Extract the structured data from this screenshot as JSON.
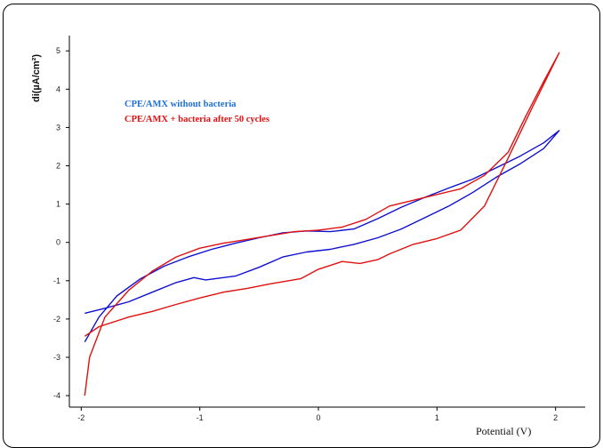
{
  "chart_data": {
    "type": "line",
    "title": "",
    "xlabel": "Potential (V)",
    "ylabel": "di(µA/cm²)",
    "xlim": [
      -2.1,
      2.25
    ],
    "ylim": [
      -4.3,
      5.4
    ],
    "xticks": [
      -2,
      -1,
      0,
      1,
      2
    ],
    "yticks": [
      -4,
      -3,
      -2,
      -1,
      0,
      1,
      2,
      3,
      4,
      5
    ],
    "grid": false,
    "legend_position": "top-left",
    "series": [
      {
        "name": "CPE/AMX without bacteria",
        "color": "#1010d0",
        "legend_color": "#1f6fd6",
        "x": [
          -1.97,
          -1.8,
          -1.6,
          -1.4,
          -1.2,
          -1.05,
          -0.95,
          -0.7,
          -0.5,
          -0.3,
          -0.1,
          0.1,
          0.3,
          0.5,
          0.7,
          0.9,
          1.1,
          1.3,
          1.5,
          1.7,
          1.9,
          2.03,
          1.9,
          1.7,
          1.5,
          1.3,
          1.1,
          0.9,
          0.7,
          0.5,
          0.3,
          0.1,
          -0.1,
          -0.3,
          -0.5,
          -0.7,
          -0.9,
          -1.1,
          -1.3,
          -1.5,
          -1.7,
          -1.85,
          -1.97
        ],
        "y": [
          -1.85,
          -1.72,
          -1.55,
          -1.3,
          -1.05,
          -0.92,
          -0.98,
          -0.88,
          -0.65,
          -0.38,
          -0.25,
          -0.18,
          -0.05,
          0.12,
          0.35,
          0.65,
          0.95,
          1.3,
          1.7,
          2.05,
          2.45,
          2.92,
          2.6,
          2.25,
          1.95,
          1.65,
          1.42,
          1.18,
          0.92,
          0.62,
          0.35,
          0.28,
          0.3,
          0.25,
          0.12,
          -0.02,
          -0.18,
          -0.38,
          -0.62,
          -0.95,
          -1.4,
          -1.95,
          -2.6
        ]
      },
      {
        "name": "CPE/AMX + bacteria after 50 cycles",
        "color": "#e01010",
        "legend_color": "#e01010",
        "x": [
          -1.97,
          -1.85,
          -1.6,
          -1.4,
          -1.2,
          -1.0,
          -0.8,
          -0.6,
          -0.4,
          -0.15,
          0.0,
          0.2,
          0.35,
          0.5,
          0.6,
          0.8,
          1.0,
          1.2,
          1.4,
          1.6,
          1.8,
          2.03,
          1.9,
          1.75,
          1.6,
          1.4,
          1.2,
          1.0,
          0.8,
          0.6,
          0.4,
          0.2,
          0.0,
          -0.2,
          -0.4,
          -0.6,
          -0.8,
          -1.0,
          -1.2,
          -1.4,
          -1.6,
          -1.8,
          -1.93,
          -1.97
        ],
        "y": [
          -2.45,
          -2.2,
          -1.95,
          -1.8,
          -1.62,
          -1.45,
          -1.3,
          -1.2,
          -1.08,
          -0.95,
          -0.7,
          -0.5,
          -0.55,
          -0.45,
          -0.3,
          -0.05,
          0.1,
          0.32,
          0.95,
          2.2,
          3.5,
          4.95,
          4.2,
          3.3,
          2.35,
          1.75,
          1.4,
          1.25,
          1.1,
          0.95,
          0.6,
          0.4,
          0.32,
          0.28,
          0.18,
          0.08,
          -0.02,
          -0.15,
          -0.38,
          -0.75,
          -1.25,
          -1.95,
          -3.0,
          -4.0
        ]
      }
    ]
  }
}
